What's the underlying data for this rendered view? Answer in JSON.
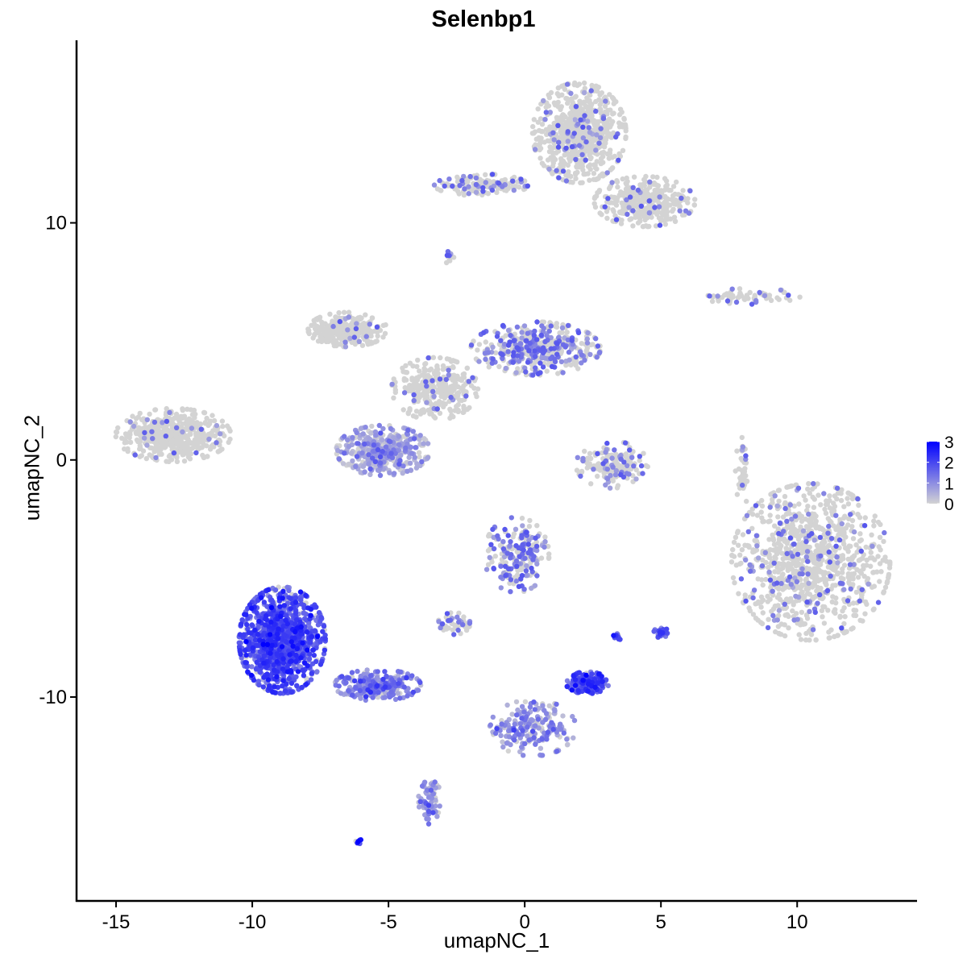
{
  "chart_data": {
    "type": "scatter",
    "title": "Selenbp1",
    "xlabel": "umapNC_1",
    "ylabel": "umapNC_2",
    "xlim": [
      -16.45,
      14.4
    ],
    "ylim": [
      -18.6,
      17.7
    ],
    "xticks": [
      -15,
      -10,
      -5,
      0,
      5,
      10
    ],
    "yticks": [
      -10,
      0,
      10
    ],
    "grid": false,
    "legend": {
      "position": "right",
      "type": "colorbar",
      "ticks": [
        0,
        1,
        2,
        3
      ],
      "low_color": "#D3D3D3",
      "high_color": "#0000FF",
      "range": [
        0,
        3
      ]
    },
    "clusters": [
      {
        "x": 2.0,
        "y": 13.8,
        "sx": 1.3,
        "sy": 1.6,
        "n": 700,
        "expr": 0.05
      },
      {
        "x": 4.4,
        "y": 10.9,
        "sx": 1.4,
        "sy": 0.8,
        "n": 350,
        "expr": 0.05
      },
      {
        "x": -1.6,
        "y": 11.6,
        "sx": 1.3,
        "sy": 0.35,
        "n": 150,
        "expr": 0.15
      },
      {
        "x": -2.8,
        "y": 8.6,
        "sx": 0.15,
        "sy": 0.25,
        "n": 12,
        "expr": 0.3
      },
      {
        "x": -6.5,
        "y": 5.5,
        "sx": 1.1,
        "sy": 0.55,
        "n": 300,
        "expr": 0.03
      },
      {
        "x": 0.4,
        "y": 4.7,
        "sx": 1.8,
        "sy": 0.85,
        "n": 450,
        "expr": 0.3
      },
      {
        "x": -3.3,
        "y": 3.0,
        "sx": 1.2,
        "sy": 1.0,
        "n": 300,
        "expr": 0.05
      },
      {
        "x": -5.2,
        "y": 0.4,
        "sx": 1.3,
        "sy": 0.8,
        "n": 400,
        "expr": 0.6
      },
      {
        "x": -12.9,
        "y": 1.05,
        "sx": 1.6,
        "sy": 0.85,
        "n": 450,
        "expr": 0.03
      },
      {
        "x": 3.2,
        "y": -0.2,
        "sx": 1.0,
        "sy": 0.75,
        "n": 170,
        "expr": 0.1
      },
      {
        "x": 8.3,
        "y": 6.9,
        "sx": 1.4,
        "sy": 0.25,
        "n": 70,
        "expr": 0.1
      },
      {
        "x": 8.0,
        "y": -0.5,
        "sx": 0.2,
        "sy": 1.1,
        "n": 60,
        "expr": 0.05
      },
      {
        "x": 10.5,
        "y": -4.3,
        "sx": 2.2,
        "sy": 2.5,
        "n": 1000,
        "expr": 0.08
      },
      {
        "x": -0.3,
        "y": -4.0,
        "sx": 0.9,
        "sy": 1.2,
        "n": 220,
        "expr": 0.35
      },
      {
        "x": -2.6,
        "y": -6.9,
        "sx": 0.45,
        "sy": 0.35,
        "n": 50,
        "expr": 0.2
      },
      {
        "x": -8.9,
        "y": -7.6,
        "sx": 1.2,
        "sy": 1.7,
        "n": 1100,
        "expr": 1.8
      },
      {
        "x": -5.4,
        "y": -9.5,
        "sx": 1.2,
        "sy": 0.5,
        "n": 250,
        "expr": 1.2
      },
      {
        "x": -3.5,
        "y": -14.3,
        "sx": 0.3,
        "sy": 0.8,
        "n": 70,
        "expr": 0.8
      },
      {
        "x": -6.1,
        "y": -16.1,
        "sx": 0.1,
        "sy": 0.08,
        "n": 8,
        "expr": 2.3
      },
      {
        "x": 2.3,
        "y": -9.4,
        "sx": 0.6,
        "sy": 0.35,
        "n": 170,
        "expr": 1.8
      },
      {
        "x": 3.4,
        "y": -7.5,
        "sx": 0.12,
        "sy": 0.15,
        "n": 12,
        "expr": 2.0
      },
      {
        "x": 5.0,
        "y": -7.3,
        "sx": 0.2,
        "sy": 0.2,
        "n": 25,
        "expr": 1.7
      },
      {
        "x": 0.3,
        "y": -11.3,
        "sx": 1.2,
        "sy": 0.9,
        "n": 200,
        "expr": 0.8
      }
    ]
  }
}
